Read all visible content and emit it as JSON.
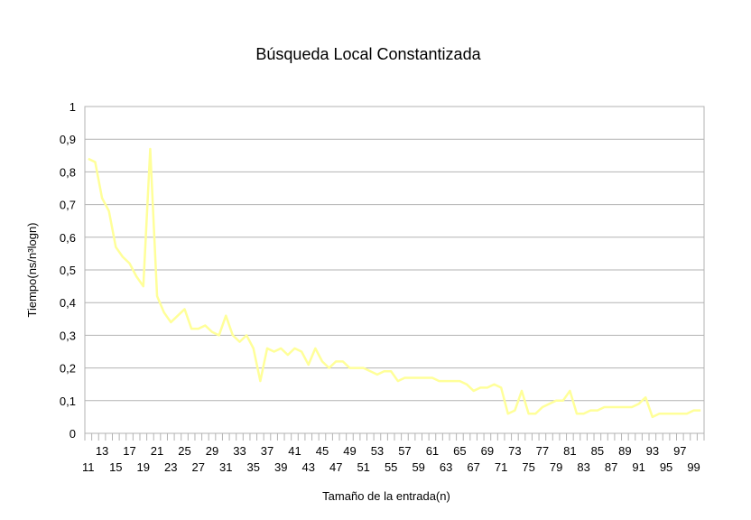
{
  "chart_data": {
    "type": "line",
    "title": "Búsqueda Local Constantizada",
    "xlabel": "Tamaño de la entrada(n)",
    "ylabel": "Tiempo(ns/n³logn)",
    "ylim": [
      0,
      1
    ],
    "yticks": [
      "0",
      "0,1",
      "0,2",
      "0,3",
      "0,4",
      "0,5",
      "0,6",
      "0,7",
      "0,8",
      "0,9",
      "1"
    ],
    "grid": true,
    "legend": "none",
    "line_color": "#ffff99",
    "x": [
      11,
      12,
      13,
      14,
      15,
      16,
      17,
      18,
      19,
      20,
      21,
      22,
      23,
      24,
      25,
      26,
      27,
      28,
      29,
      30,
      31,
      32,
      33,
      34,
      35,
      36,
      37,
      38,
      39,
      40,
      41,
      42,
      43,
      44,
      45,
      46,
      47,
      48,
      49,
      50,
      51,
      52,
      53,
      54,
      55,
      56,
      57,
      58,
      59,
      60,
      61,
      62,
      63,
      64,
      65,
      66,
      67,
      68,
      69,
      70,
      71,
      72,
      73,
      74,
      75,
      76,
      77,
      78,
      79,
      80,
      81,
      82,
      83,
      84,
      85,
      86,
      87,
      88,
      89,
      90,
      91,
      92,
      93,
      94,
      95,
      96,
      97,
      98,
      99,
      100
    ],
    "values": [
      0.84,
      0.83,
      0.72,
      0.68,
      0.57,
      0.54,
      0.52,
      0.48,
      0.45,
      0.87,
      0.42,
      0.37,
      0.34,
      0.36,
      0.38,
      0.32,
      0.32,
      0.33,
      0.31,
      0.3,
      0.36,
      0.3,
      0.28,
      0.3,
      0.26,
      0.16,
      0.26,
      0.25,
      0.26,
      0.24,
      0.26,
      0.25,
      0.21,
      0.26,
      0.22,
      0.2,
      0.22,
      0.22,
      0.2,
      0.2,
      0.2,
      0.19,
      0.18,
      0.19,
      0.19,
      0.16,
      0.17,
      0.17,
      0.17,
      0.17,
      0.17,
      0.16,
      0.16,
      0.16,
      0.16,
      0.15,
      0.13,
      0.14,
      0.14,
      0.15,
      0.14,
      0.06,
      0.07,
      0.13,
      0.06,
      0.06,
      0.08,
      0.09,
      0.1,
      0.1,
      0.13,
      0.06,
      0.06,
      0.07,
      0.07,
      0.08,
      0.08,
      0.08,
      0.08,
      0.08,
      0.09,
      0.11,
      0.05,
      0.06,
      0.06,
      0.06,
      0.06,
      0.06,
      0.07,
      0.07
    ]
  }
}
